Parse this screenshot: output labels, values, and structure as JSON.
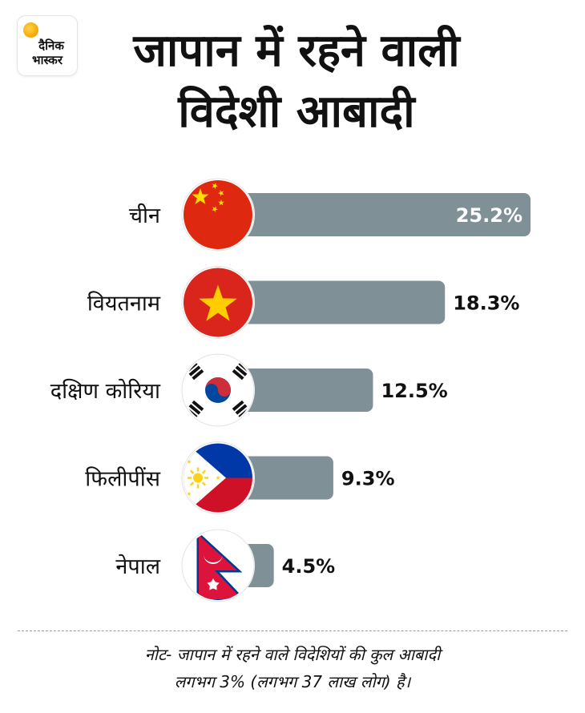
{
  "brand": {
    "line1": "दैनिक",
    "line2": "भास्कर"
  },
  "title": "जापान में रहने वाली विदेशी आबादी",
  "chart_data": {
    "type": "bar",
    "orientation": "horizontal",
    "categories": [
      "चीन",
      "वियतनाम",
      "दक्षिण कोरिया",
      "फिलीपींस",
      "नेपाल"
    ],
    "values": [
      25.2,
      18.3,
      12.5,
      9.3,
      4.5
    ],
    "value_labels": [
      "25.2%",
      "18.3%",
      "12.5%",
      "9.3%",
      "4.5%"
    ],
    "flag_icons": [
      "china-flag-icon",
      "vietnam-flag-icon",
      "south-korea-flag-icon",
      "philippines-flag-icon",
      "nepal-flag-icon"
    ],
    "bar_color": "#7f9097",
    "xlim": [
      0,
      25.2
    ],
    "grid": false,
    "legend": "none"
  },
  "note": {
    "line1": "नोट- जापान में रहने वाले विदेशियों की कुल आबादी",
    "line2": "लगभग 3% (लगभग 37 लाख लोग) है।"
  }
}
